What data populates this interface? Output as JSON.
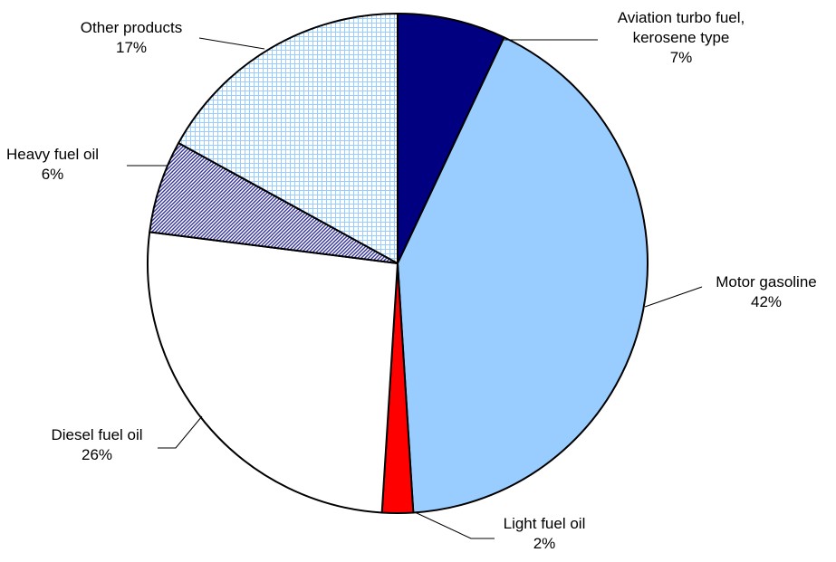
{
  "chart_data": {
    "type": "pie",
    "title": "",
    "start_angle_deg": 0,
    "direction": "clockwise",
    "slices": [
      {
        "id": "aviation",
        "name_lines": [
          "Aviation turbo fuel,",
          "kerosene type"
        ],
        "percent_label": "7%",
        "value": 7,
        "fill": "#000080",
        "pattern": "solid"
      },
      {
        "id": "motor-gasoline",
        "name_lines": [
          "Motor gasoline"
        ],
        "percent_label": "42%",
        "value": 42,
        "fill": "#99CCFF",
        "pattern": "solid"
      },
      {
        "id": "light-fuel-oil",
        "name_lines": [
          "Light fuel oil"
        ],
        "percent_label": "2%",
        "value": 2,
        "fill": "#FF0000",
        "pattern": "solid"
      },
      {
        "id": "diesel-fuel-oil",
        "name_lines": [
          "Diesel fuel oil"
        ],
        "percent_label": "26%",
        "value": 26,
        "fill": "#FFFFFF",
        "pattern": "solid"
      },
      {
        "id": "heavy-fuel-oil",
        "name_lines": [
          "Heavy fuel oil"
        ],
        "percent_label": "6%",
        "value": 6,
        "fill": "#333399",
        "pattern": "diagonal-hatch"
      },
      {
        "id": "other-products",
        "name_lines": [
          "Other products"
        ],
        "percent_label": "17%",
        "value": 17,
        "fill": "#99CCFF",
        "pattern": "grid"
      }
    ]
  }
}
